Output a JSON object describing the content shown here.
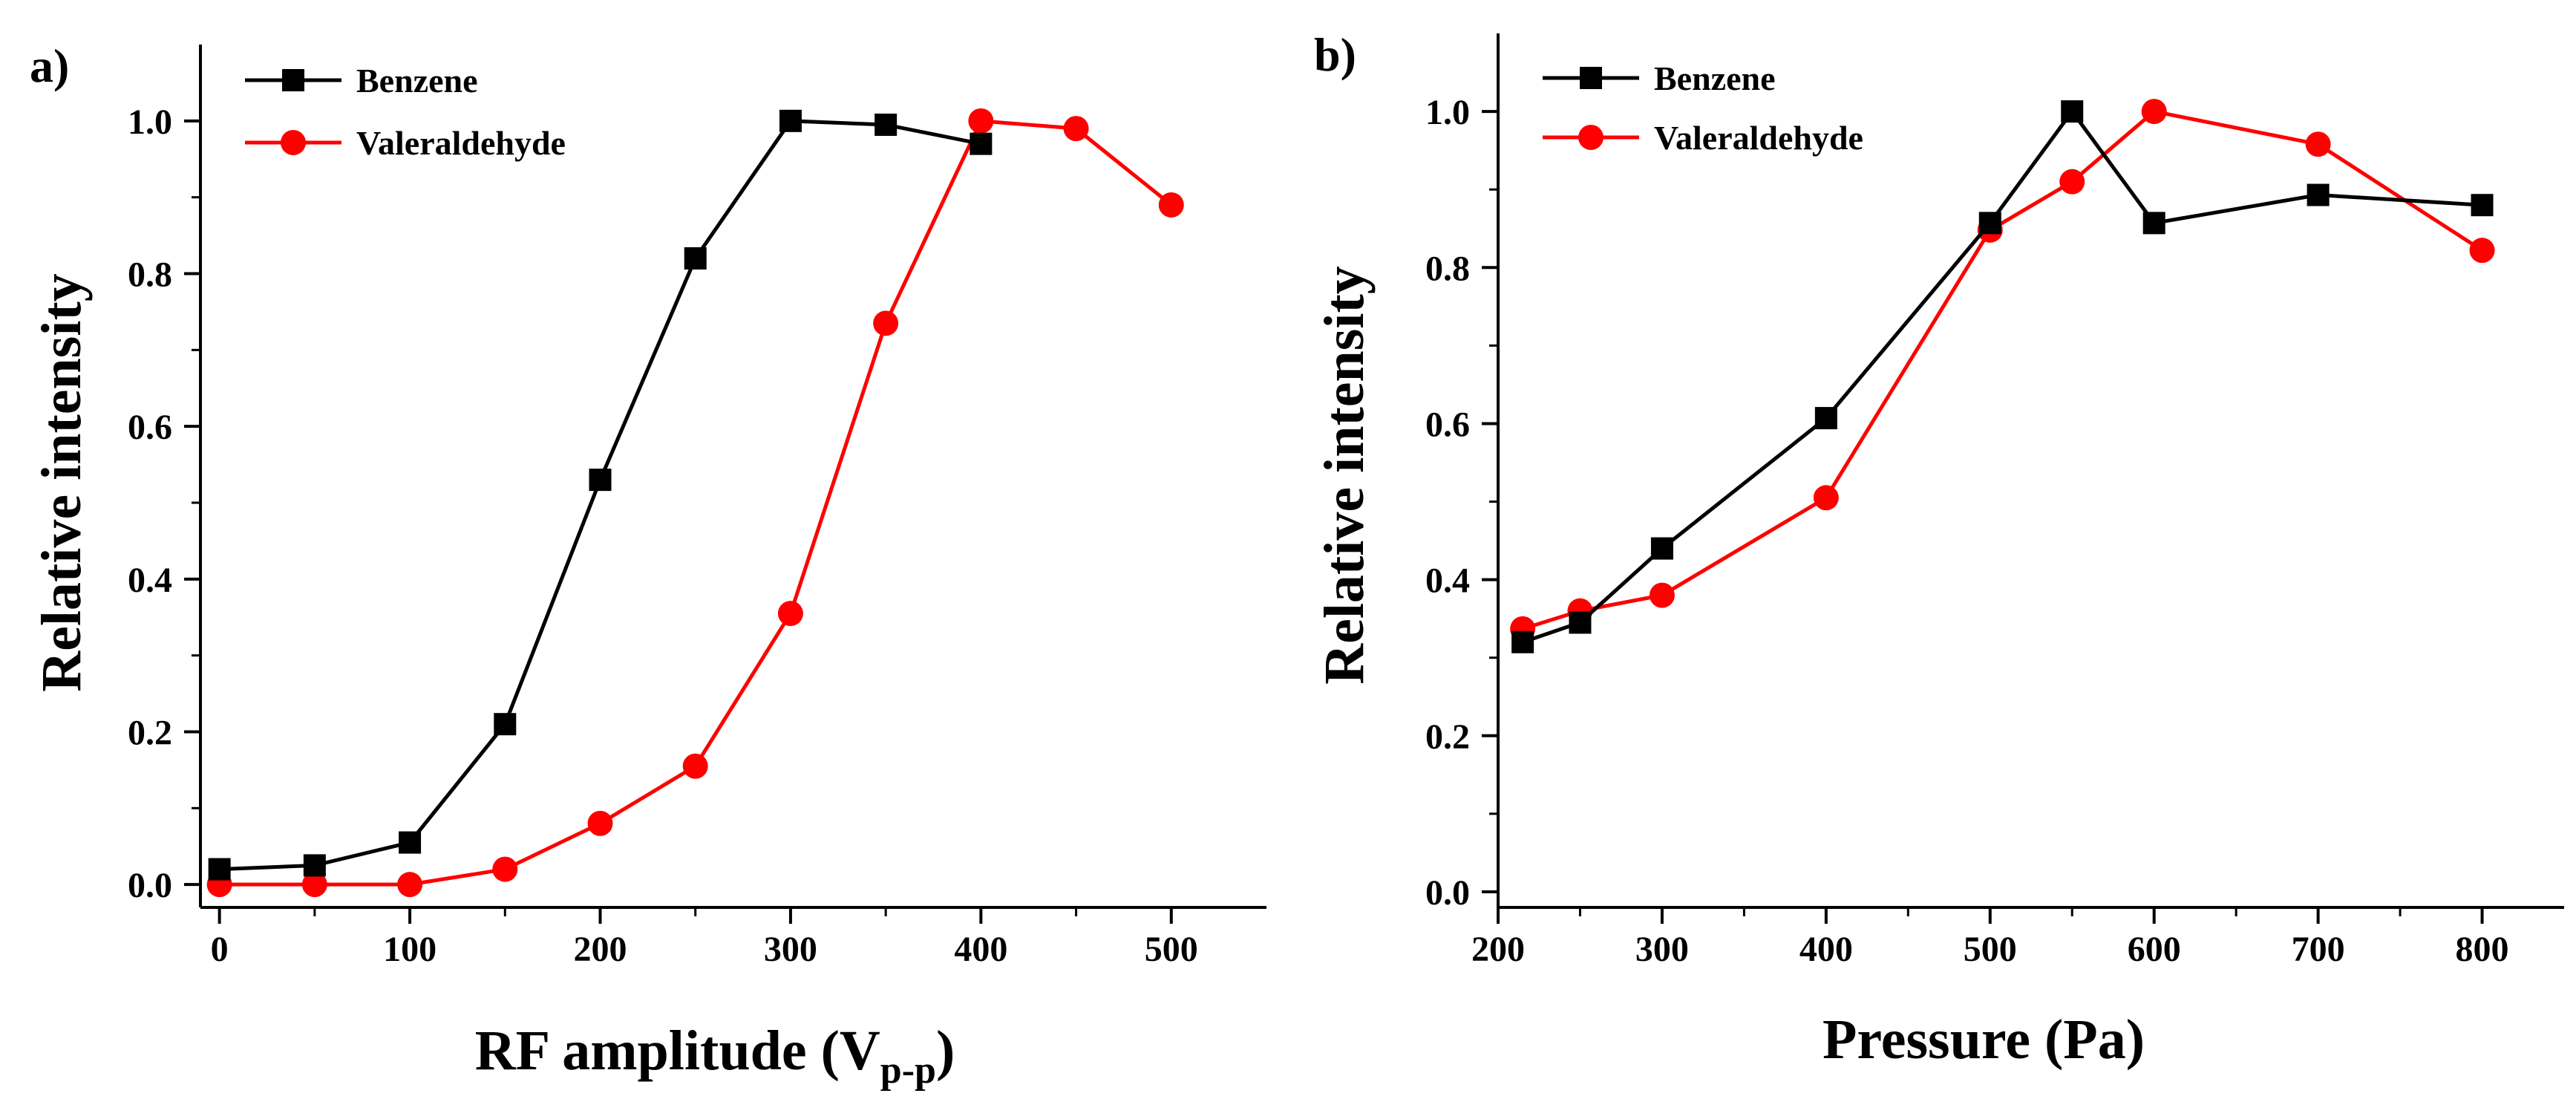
{
  "chart_data": [
    {
      "type": "line",
      "panel_label": "a)",
      "xlabel": "RF amplitude (V",
      "xlabel_sub": "p-p",
      "xlabel_close": ")",
      "ylabel": "Relative intensity",
      "xlim": [
        -10,
        550
      ],
      "ylim": [
        -0.03,
        1.1
      ],
      "xticks": [
        0,
        100,
        200,
        300,
        400,
        500
      ],
      "xtick_labels": [
        "0",
        "100",
        "200",
        "300",
        "400",
        "500"
      ],
      "yticks": [
        0.0,
        0.2,
        0.4,
        0.6,
        0.8,
        1.0
      ],
      "ytick_labels": [
        "0.0",
        "0.2",
        "0.4",
        "0.6",
        "0.8",
        "1.0"
      ],
      "grid": false,
      "legend_position": "top-left",
      "series": [
        {
          "name": "Benzene",
          "color": "#000000",
          "marker": "square",
          "x": [
            0,
            50,
            100,
            150,
            200,
            250,
            300,
            350,
            400
          ],
          "y": [
            0.02,
            0.025,
            0.055,
            0.21,
            0.53,
            0.82,
            1.0,
            0.995,
            0.97
          ]
        },
        {
          "name": "Valeraldehyde",
          "color": "#ff0000",
          "marker": "circle",
          "x": [
            0,
            50,
            100,
            150,
            200,
            250,
            300,
            350,
            400,
            450,
            500
          ],
          "y": [
            0.0,
            0.0,
            0.0,
            0.02,
            0.08,
            0.155,
            0.355,
            0.735,
            1.0,
            0.99,
            0.89
          ]
        }
      ]
    },
    {
      "type": "line",
      "panel_label": "b)",
      "xlabel": "Pressure (Pa)",
      "ylabel": "Relative intensity",
      "xlim": [
        200,
        850
      ],
      "ylim": [
        -0.02,
        1.1
      ],
      "xticks": [
        200,
        300,
        400,
        500,
        600,
        700,
        800
      ],
      "xtick_labels": [
        "200",
        "300",
        "400",
        "500",
        "600",
        "700",
        "800"
      ],
      "yticks": [
        0.0,
        0.2,
        0.4,
        0.6,
        0.8,
        1.0
      ],
      "ytick_labels": [
        "0.0",
        "0.2",
        "0.4",
        "0.6",
        "0.8",
        "1.0"
      ],
      "grid": false,
      "legend_position": "top-left",
      "series": [
        {
          "name": "Benzene",
          "color": "#000000",
          "marker": "square",
          "x": [
            215,
            250,
            300,
            400,
            500,
            550,
            600,
            700,
            800
          ],
          "y": [
            0.32,
            0.345,
            0.44,
            0.607,
            0.857,
            1.0,
            0.857,
            0.893,
            0.88
          ]
        },
        {
          "name": "Valeraldehyde",
          "color": "#ff0000",
          "marker": "circle",
          "x": [
            215,
            250,
            300,
            400,
            500,
            550,
            600,
            700,
            800
          ],
          "y": [
            0.337,
            0.36,
            0.38,
            0.505,
            0.848,
            0.91,
            1.0,
            0.958,
            0.822
          ]
        }
      ]
    }
  ]
}
